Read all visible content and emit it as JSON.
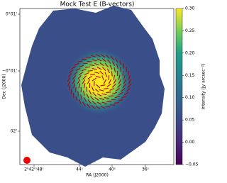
{
  "chart_data": {
    "type": "image",
    "title": "Mock Test E (B-vectors)",
    "x_label": "RA (J2000)",
    "y_label": "Dec (J2000)",
    "xtick_labels": [
      "2ʰ42ᵐ48ˢ",
      "44ˢ",
      "40ˢ",
      "36ˢ"
    ],
    "ytick_labels": [
      "0°01'",
      "−0°01'",
      "02'"
    ],
    "colorbar_label": "Intensity (Jy arcsec⁻²)",
    "clim": [
      -0.05,
      0.3
    ],
    "cticks": [
      {
        "value": -0.05,
        "label": "−0.05"
      },
      {
        "value": 0,
        "label": "0.00"
      },
      {
        "value": 0.05,
        "label": "0.05"
      },
      {
        "value": 0.1,
        "label": "0.10"
      },
      {
        "value": 0.15,
        "label": "0.15"
      },
      {
        "value": 0.2,
        "label": "0.20"
      },
      {
        "value": 0.25,
        "label": "0.25"
      },
      {
        "value": 0.3,
        "label": "0.30"
      }
    ],
    "colormap": "viridis",
    "vector_color": "#b00000"
  }
}
